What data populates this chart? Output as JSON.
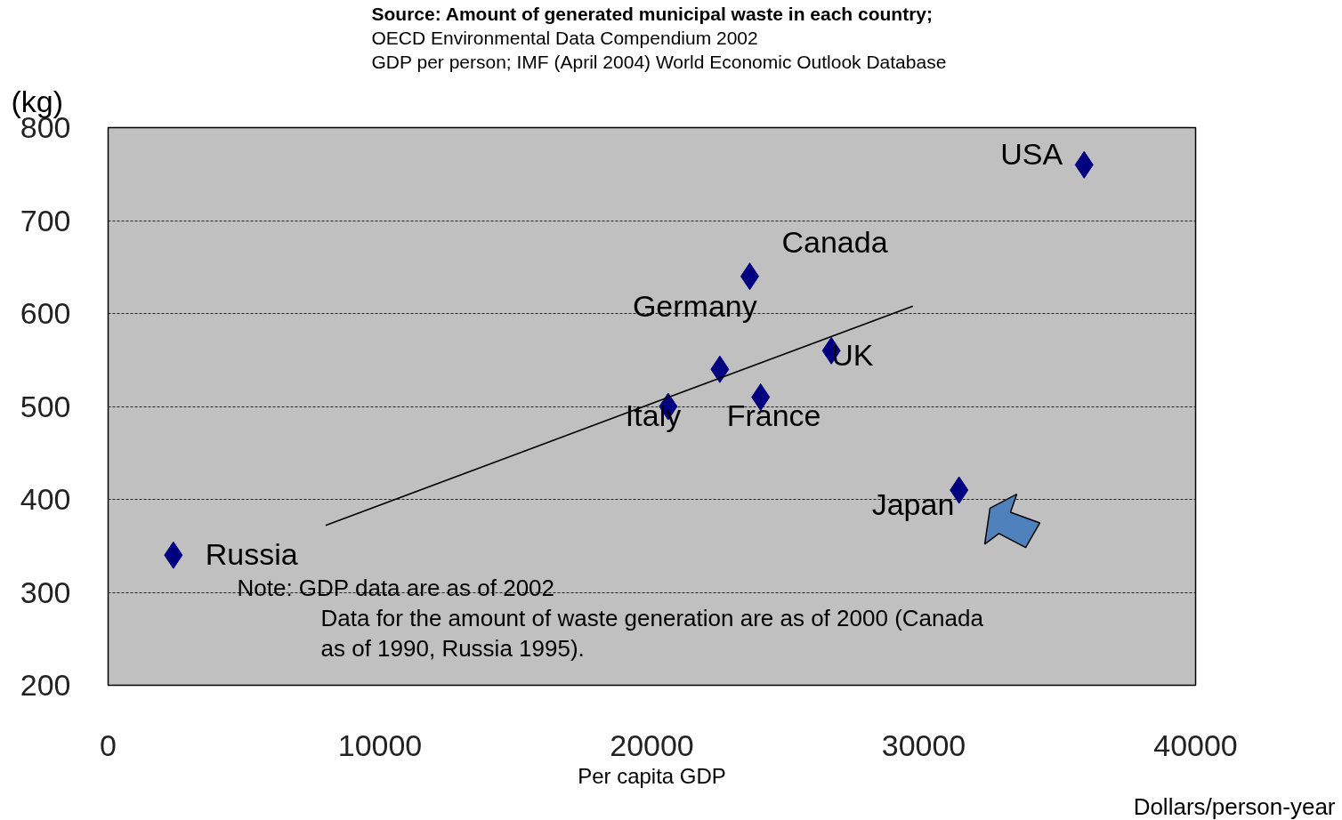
{
  "chart_data": {
    "type": "scatter",
    "title": "Source: Amount of generated municipal waste in each country;",
    "ylabel": "(kg)",
    "xlabel": "Per capita GDP",
    "xlim": [
      0,
      40000
    ],
    "ylim": [
      200,
      800
    ],
    "xticks": [
      0,
      10000,
      20000,
      30000,
      40000
    ],
    "yticks": [
      200,
      300,
      400,
      500,
      600,
      700,
      800
    ],
    "grid": "y",
    "series": [
      {
        "type": "scatter",
        "marker": "diamond",
        "color": "#000080",
        "x": [
          2400,
          20600,
          22500,
          24000,
          23600,
          26600,
          31300,
          35900
        ],
        "values": [
          340,
          500,
          540,
          510,
          640,
          560,
          410,
          760
        ]
      },
      {
        "type": "line",
        "color": "#000000",
        "x": [
          8000,
          29600
        ],
        "values": [
          372,
          608
        ]
      }
    ],
    "annotations": [
      "OECD Environmental Data Compendium 2002",
      "GDP per person; IMF (April 2004) World Economic Outlook Database",
      "Note: GDP data are as of 2002",
      "Data for the amount of waste generation  are as of 2000 (Canada",
      "as of 1990, Russia 1995).",
      "Dollars/person-year",
      {
        "text": "Russia",
        "x": 2400,
        "y": 340
      },
      {
        "text": "Italy",
        "x": 20600,
        "y": 500
      },
      {
        "text": "Germany",
        "x": 22500,
        "y": 540
      },
      {
        "text": "France",
        "x": 24000,
        "y": 510
      },
      {
        "text": "Canada",
        "x": 23600,
        "y": 640
      },
      {
        "text": "UK",
        "x": 26600,
        "y": 560
      },
      {
        "text": "Japan",
        "x": 31300,
        "y": 410
      },
      {
        "text": "USA",
        "x": 35900,
        "y": 760
      }
    ]
  }
}
